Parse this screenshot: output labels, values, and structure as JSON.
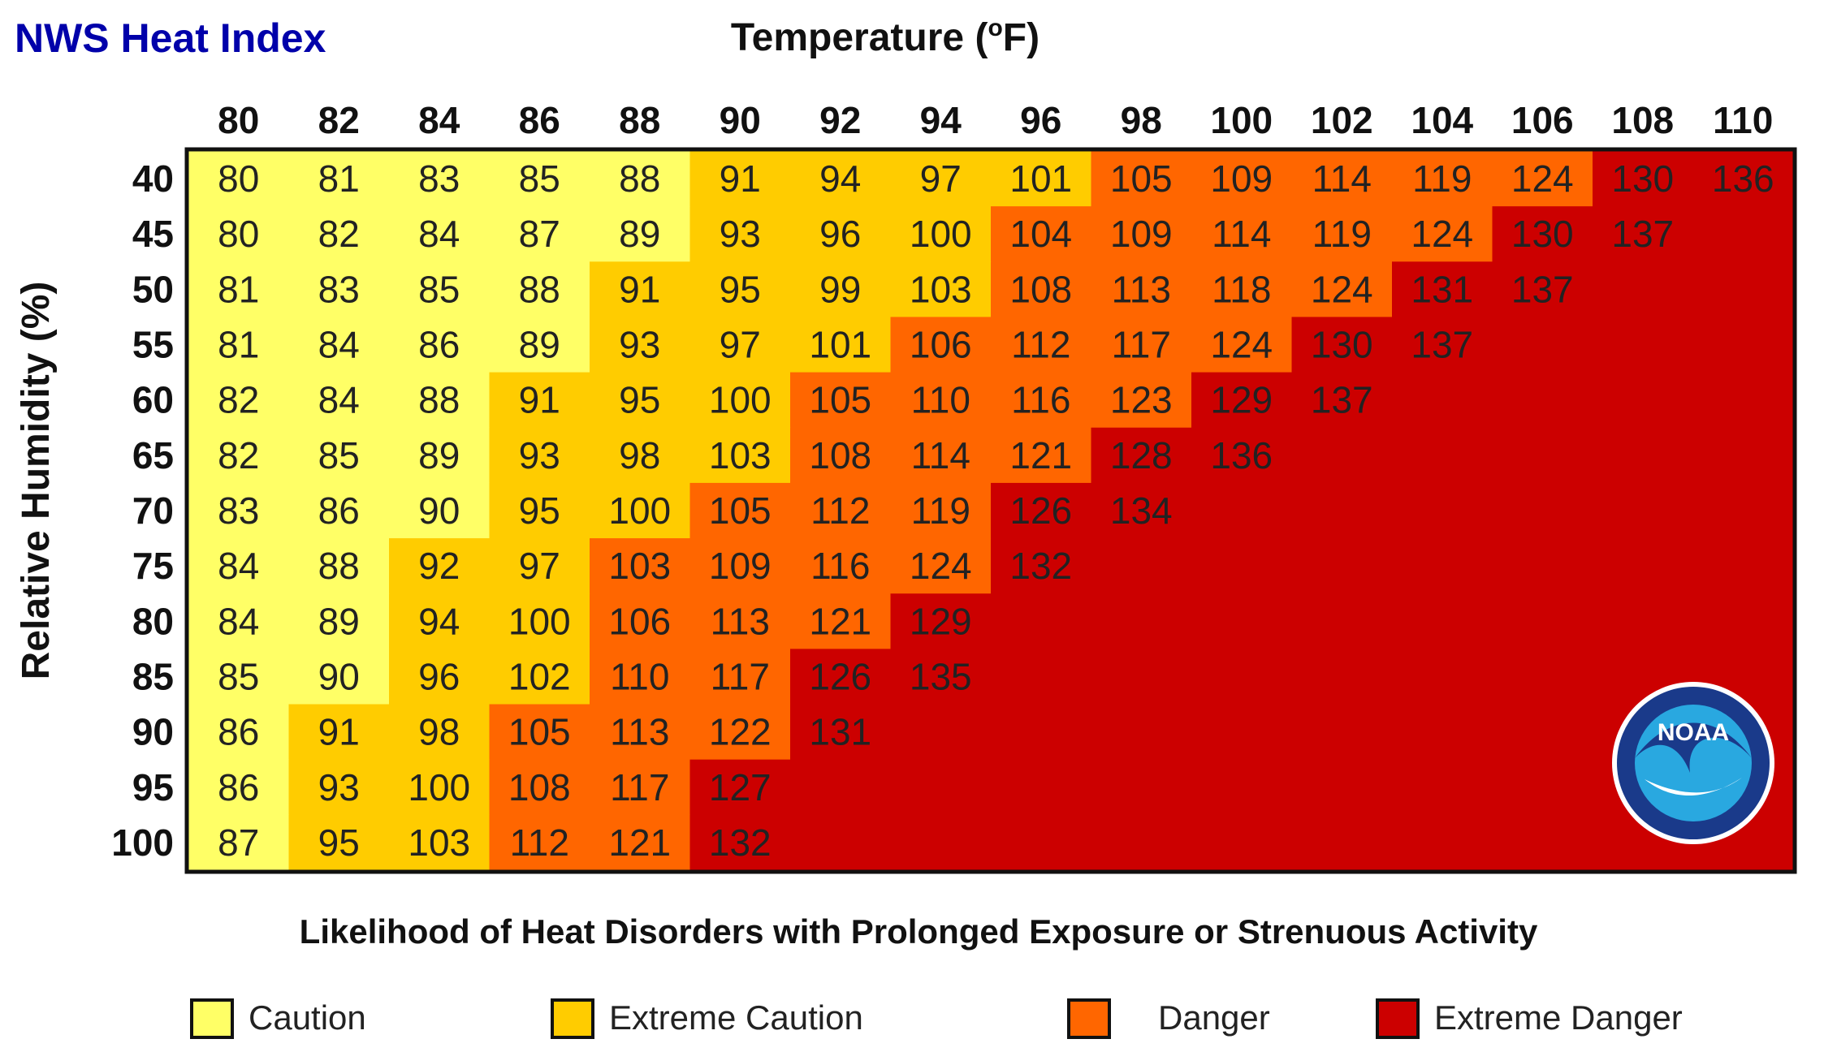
{
  "chart_data": {
    "type": "heatmap",
    "title": "NWS Heat Index",
    "xlabel": "Temperature (",
    "xlabel_unit_sup": "o",
    "xlabel_unit_tail": "F)",
    "ylabel": "Relative Humidity (%)",
    "x": [
      80,
      82,
      84,
      86,
      88,
      90,
      92,
      94,
      96,
      98,
      100,
      102,
      104,
      106,
      108,
      110
    ],
    "y": [
      40,
      45,
      50,
      55,
      60,
      65,
      70,
      75,
      80,
      85,
      90,
      95,
      100
    ],
    "values": [
      [
        80,
        81,
        83,
        85,
        88,
        91,
        94,
        97,
        101,
        105,
        109,
        114,
        119,
        124,
        130,
        136
      ],
      [
        80,
        82,
        84,
        87,
        89,
        93,
        96,
        100,
        104,
        109,
        114,
        119,
        124,
        130,
        137,
        null
      ],
      [
        81,
        83,
        85,
        88,
        91,
        95,
        99,
        103,
        108,
        113,
        118,
        124,
        131,
        137,
        null,
        null
      ],
      [
        81,
        84,
        86,
        89,
        93,
        97,
        101,
        106,
        112,
        117,
        124,
        130,
        137,
        null,
        null,
        null
      ],
      [
        82,
        84,
        88,
        91,
        95,
        100,
        105,
        110,
        116,
        123,
        129,
        137,
        null,
        null,
        null,
        null
      ],
      [
        82,
        85,
        89,
        93,
        98,
        103,
        108,
        114,
        121,
        128,
        136,
        null,
        null,
        null,
        null,
        null
      ],
      [
        83,
        86,
        90,
        95,
        100,
        105,
        112,
        119,
        126,
        134,
        null,
        null,
        null,
        null,
        null,
        null
      ],
      [
        84,
        88,
        92,
        97,
        103,
        109,
        116,
        124,
        132,
        null,
        null,
        null,
        null,
        null,
        null,
        null
      ],
      [
        84,
        89,
        94,
        100,
        106,
        113,
        121,
        129,
        null,
        null,
        null,
        null,
        null,
        null,
        null,
        null
      ],
      [
        85,
        90,
        96,
        102,
        110,
        117,
        126,
        135,
        null,
        null,
        null,
        null,
        null,
        null,
        null,
        null
      ],
      [
        86,
        91,
        98,
        105,
        113,
        122,
        131,
        null,
        null,
        null,
        null,
        null,
        null,
        null,
        null,
        null
      ],
      [
        86,
        93,
        100,
        108,
        117,
        127,
        null,
        null,
        null,
        null,
        null,
        null,
        null,
        null,
        null,
        null
      ],
      [
        87,
        95,
        103,
        112,
        121,
        132,
        null,
        null,
        null,
        null,
        null,
        null,
        null,
        null,
        null,
        null
      ]
    ],
    "categories": [
      {
        "name": "Caution",
        "min": 80,
        "max": 90,
        "color": "#ffff66"
      },
      {
        "name": "Extreme Caution",
        "min": 91,
        "max": 103,
        "color": "#ffcc00"
      },
      {
        "name": "Danger",
        "min": 104,
        "max": 124,
        "color": "#ff6600"
      },
      {
        "name": "Extreme Danger",
        "min": 125,
        "max": 137,
        "color": "#cc0000"
      }
    ],
    "legend_title": "Likelihood of Heat Disorders with Prolonged Exposure or Strenuous Activity",
    "legend_position": "bottom",
    "band_colors_by_row": [
      [
        0,
        0,
        0,
        0,
        0,
        1,
        1,
        1,
        1,
        2,
        2,
        2,
        2,
        2,
        3,
        3
      ],
      [
        0,
        0,
        0,
        0,
        0,
        1,
        1,
        1,
        2,
        2,
        2,
        2,
        2,
        3,
        3,
        3
      ],
      [
        0,
        0,
        0,
        0,
        1,
        1,
        1,
        1,
        2,
        2,
        2,
        2,
        3,
        3,
        3,
        3
      ],
      [
        0,
        0,
        0,
        0,
        1,
        1,
        1,
        2,
        2,
        2,
        2,
        3,
        3,
        3,
        3,
        3
      ],
      [
        0,
        0,
        0,
        1,
        1,
        1,
        2,
        2,
        2,
        2,
        3,
        3,
        3,
        3,
        3,
        3
      ],
      [
        0,
        0,
        0,
        1,
        1,
        1,
        2,
        2,
        2,
        3,
        3,
        3,
        3,
        3,
        3,
        3
      ],
      [
        0,
        0,
        0,
        1,
        1,
        2,
        2,
        2,
        3,
        3,
        3,
        3,
        3,
        3,
        3,
        3
      ],
      [
        0,
        0,
        1,
        1,
        2,
        2,
        2,
        2,
        3,
        3,
        3,
        3,
        3,
        3,
        3,
        3
      ],
      [
        0,
        0,
        1,
        1,
        2,
        2,
        2,
        3,
        3,
        3,
        3,
        3,
        3,
        3,
        3,
        3
      ],
      [
        0,
        0,
        1,
        1,
        2,
        2,
        3,
        3,
        3,
        3,
        3,
        3,
        3,
        3,
        3,
        3
      ],
      [
        0,
        1,
        1,
        2,
        2,
        2,
        3,
        3,
        3,
        3,
        3,
        3,
        3,
        3,
        3,
        3
      ],
      [
        0,
        1,
        1,
        2,
        2,
        3,
        3,
        3,
        3,
        3,
        3,
        3,
        3,
        3,
        3,
        3
      ],
      [
        0,
        1,
        1,
        2,
        2,
        3,
        3,
        3,
        3,
        3,
        3,
        3,
        3,
        3,
        3,
        3
      ]
    ]
  },
  "logo": {
    "text": "NOAA",
    "ring_color": "#1a3a8a",
    "inner_color": "#29a8e0"
  },
  "colors": {
    "title": "#0000aa",
    "text": "#111111",
    "grid_border": "#111111"
  }
}
